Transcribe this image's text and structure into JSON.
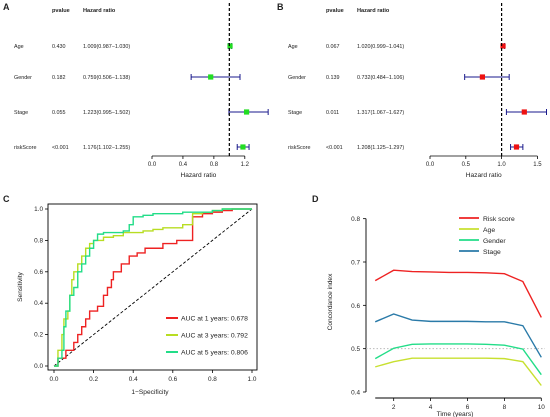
{
  "panels": {
    "A": {
      "label": "A"
    },
    "B": {
      "label": "B"
    },
    "C": {
      "label": "C"
    },
    "D": {
      "label": "D"
    }
  },
  "chart_data": [
    {
      "panel": "A",
      "type": "forest",
      "columns": {
        "pvalue": "pvalue",
        "hr": "Hazard ratio"
      },
      "xlabel": "Hazard ratio",
      "xlim": [
        0.0,
        1.5
      ],
      "xticks": [
        "0.0",
        "0.4",
        "0.8",
        "1.2"
      ],
      "xtick_values": [
        0.0,
        0.4,
        0.8,
        1.2
      ],
      "reference": 1.0,
      "color": "#22dd22",
      "rows": [
        {
          "name": "Age",
          "pvalue": "0.430",
          "hr_text": "1.009(0.987−1.030)",
          "hr": 1.009,
          "lo": 0.987,
          "hi": 1.03
        },
        {
          "name": "Gender",
          "pvalue": "0.182",
          "hr_text": "0.759(0.506−1.138)",
          "hr": 0.759,
          "lo": 0.506,
          "hi": 1.138
        },
        {
          "name": "Stage",
          "pvalue": "0.055",
          "hr_text": "1.223(0.995−1.502)",
          "hr": 1.223,
          "lo": 0.995,
          "hi": 1.502
        },
        {
          "name": "riskScore",
          "pvalue": "<0.001",
          "hr_text": "1.176(1.102−1.255)",
          "hr": 1.176,
          "lo": 1.102,
          "hi": 1.255
        }
      ]
    },
    {
      "panel": "B",
      "type": "forest",
      "columns": {
        "pvalue": "pvalue",
        "hr": "Hazard ratio"
      },
      "xlabel": "Hazard ratio",
      "xlim": [
        0.0,
        1.62
      ],
      "xticks": [
        "0.0",
        "0.5",
        "1.0",
        "1.5"
      ],
      "xtick_values": [
        0.0,
        0.5,
        1.0,
        1.5
      ],
      "reference": 1.0,
      "color": "#ee1111",
      "rows": [
        {
          "name": "Age",
          "pvalue": "0.067",
          "hr_text": "1.020(0.999−1.041)",
          "hr": 1.02,
          "lo": 0.999,
          "hi": 1.041
        },
        {
          "name": "Gender",
          "pvalue": "0.139",
          "hr_text": "0.732(0.484−1.106)",
          "hr": 0.732,
          "lo": 0.484,
          "hi": 1.106
        },
        {
          "name": "Stage",
          "pvalue": "0.011",
          "hr_text": "1.317(1.067−1.627)",
          "hr": 1.317,
          "lo": 1.067,
          "hi": 1.627
        },
        {
          "name": "riskScore",
          "pvalue": "<0.001",
          "hr_text": "1.208(1.125−1.297)",
          "hr": 1.208,
          "lo": 1.125,
          "hi": 1.297
        }
      ]
    },
    {
      "panel": "C",
      "type": "line",
      "xlabel": "1−Specificity",
      "ylabel": "Sensitivity",
      "xlim": [
        0.0,
        1.0
      ],
      "ylim": [
        0.0,
        1.0
      ],
      "xticks": [
        "0.0",
        "0.2",
        "0.4",
        "0.6",
        "0.8",
        "1.0"
      ],
      "yticks": [
        "0.0",
        "0.2",
        "0.4",
        "0.6",
        "0.8",
        "1.0"
      ],
      "tick_values": [
        0.0,
        0.2,
        0.4,
        0.6,
        0.8,
        1.0
      ],
      "diagonal": true,
      "legend_position": "bottom-right",
      "series": [
        {
          "name": "AUC at 1 years: 0.678",
          "color": "#ee2222",
          "x": [
            0,
            0.02,
            0.04,
            0.06,
            0.08,
            0.1,
            0.12,
            0.14,
            0.16,
            0.18,
            0.22,
            0.25,
            0.27,
            0.29,
            0.3,
            0.32,
            0.34,
            0.36,
            0.38,
            0.42,
            0.46,
            0.55,
            0.62,
            0.68,
            0.7,
            0.75,
            0.8,
            0.85,
            0.9,
            0.95,
            1.0
          ],
          "y": [
            0,
            0.05,
            0.05,
            0.1,
            0.1,
            0.15,
            0.2,
            0.25,
            0.3,
            0.35,
            0.38,
            0.45,
            0.5,
            0.55,
            0.6,
            0.6,
            0.65,
            0.65,
            0.7,
            0.72,
            0.75,
            0.78,
            0.8,
            0.8,
            0.95,
            0.97,
            0.98,
            0.99,
            1.0,
            1.0,
            1.0
          ]
        },
        {
          "name": "AUC at 3 years: 0.792",
          "color": "#b8dd22",
          "x": [
            0,
            0.02,
            0.04,
            0.05,
            0.07,
            0.08,
            0.09,
            0.1,
            0.12,
            0.14,
            0.16,
            0.18,
            0.2,
            0.25,
            0.3,
            0.35,
            0.4,
            0.45,
            0.5,
            0.55,
            0.6,
            0.65,
            0.7,
            0.75,
            0.8,
            0.85,
            0.9,
            1.0
          ],
          "y": [
            0,
            0.1,
            0.2,
            0.3,
            0.35,
            0.45,
            0.55,
            0.6,
            0.65,
            0.7,
            0.75,
            0.78,
            0.8,
            0.82,
            0.83,
            0.85,
            0.85,
            0.86,
            0.87,
            0.88,
            0.88,
            0.9,
            0.97,
            0.98,
            0.99,
            1.0,
            1.0,
            1.0
          ]
        },
        {
          "name": "AUC at 5 years: 0.806",
          "color": "#22dd88",
          "x": [
            0,
            0.02,
            0.04,
            0.05,
            0.06,
            0.08,
            0.1,
            0.12,
            0.14,
            0.16,
            0.18,
            0.2,
            0.22,
            0.25,
            0.3,
            0.35,
            0.38,
            0.4,
            0.45,
            0.5,
            0.55,
            0.6,
            0.65,
            0.7,
            0.75,
            0.8,
            0.85,
            0.9,
            1.0
          ],
          "y": [
            0,
            0.05,
            0.1,
            0.25,
            0.35,
            0.45,
            0.5,
            0.6,
            0.65,
            0.7,
            0.75,
            0.8,
            0.84,
            0.85,
            0.85,
            0.86,
            0.9,
            0.95,
            0.96,
            0.97,
            0.97,
            0.97,
            0.98,
            0.98,
            0.98,
            0.99,
            1.0,
            1.0,
            1.0
          ]
        }
      ]
    },
    {
      "panel": "D",
      "type": "line",
      "xlabel": "Time (years)",
      "ylabel": "Concordance index",
      "xlim": [
        0.5,
        10.2
      ],
      "ylim": [
        0.4,
        0.82
      ],
      "xticks": [
        "2",
        "4",
        "6",
        "8",
        "10"
      ],
      "xtick_values": [
        2,
        4,
        6,
        8,
        10
      ],
      "yticks": [
        "0.4",
        "0.5",
        "0.6",
        "0.7",
        "0.8"
      ],
      "ytick_values": [
        0.4,
        0.5,
        0.6,
        0.7,
        0.8
      ],
      "reference": 0.5,
      "legend_position": "top-right",
      "x": [
        1,
        2,
        3,
        4,
        5,
        6,
        7,
        8,
        9,
        10
      ],
      "series": [
        {
          "name": "Risk score",
          "color": "#ee2222",
          "values": [
            0.657,
            0.681,
            0.678,
            0.677,
            0.676,
            0.676,
            0.675,
            0.673,
            0.655,
            0.572
          ]
        },
        {
          "name": "Age",
          "color": "#c8e030",
          "values": [
            0.458,
            0.47,
            0.478,
            0.478,
            0.478,
            0.478,
            0.478,
            0.477,
            0.47,
            0.415
          ]
        },
        {
          "name": "Gender",
          "color": "#22dd88",
          "values": [
            0.477,
            0.501,
            0.51,
            0.511,
            0.511,
            0.511,
            0.51,
            0.508,
            0.499,
            0.44
          ]
        },
        {
          "name": "Stage",
          "color": "#2a7aa8",
          "values": [
            0.562,
            0.58,
            0.566,
            0.563,
            0.563,
            0.563,
            0.562,
            0.562,
            0.553,
            0.48
          ]
        }
      ]
    }
  ]
}
